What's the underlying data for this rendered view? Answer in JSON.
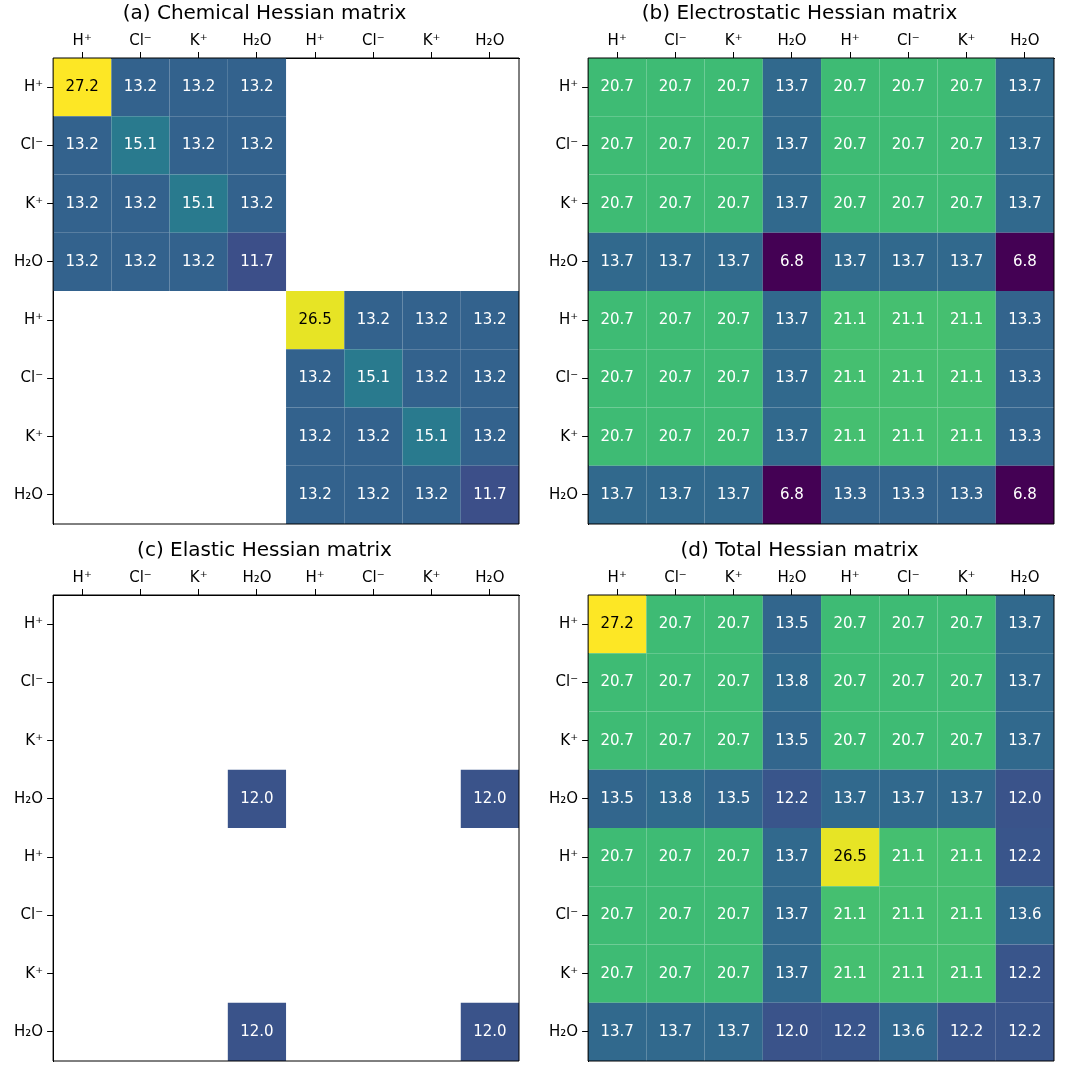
{
  "chart_data": [
    {
      "type": "heatmap",
      "title": "(a) Chemical Hessian matrix",
      "data_labels": true,
      "categories": [
        "H⁺",
        "Cl⁻",
        "K⁺",
        "H₂O",
        "H⁺",
        "Cl⁻",
        "K⁺",
        "H₂O"
      ],
      "y_categories": [
        "H⁺",
        "Cl⁻",
        "K⁺",
        "H₂O",
        "H⁺",
        "Cl⁻",
        "K⁺",
        "H₂O"
      ],
      "cells": [
        [
          27.2,
          13.2,
          13.2,
          13.2,
          null,
          null,
          null,
          null
        ],
        [
          13.2,
          15.1,
          13.2,
          13.2,
          null,
          null,
          null,
          null
        ],
        [
          13.2,
          13.2,
          15.1,
          13.2,
          null,
          null,
          null,
          null
        ],
        [
          13.2,
          13.2,
          13.2,
          11.7,
          null,
          null,
          null,
          null
        ],
        [
          null,
          null,
          null,
          null,
          26.5,
          13.2,
          13.2,
          13.2
        ],
        [
          null,
          null,
          null,
          null,
          13.2,
          15.1,
          13.2,
          13.2
        ],
        [
          null,
          null,
          null,
          null,
          13.2,
          13.2,
          15.1,
          13.2
        ],
        [
          null,
          null,
          null,
          null,
          13.2,
          13.2,
          13.2,
          11.7
        ]
      ]
    },
    {
      "type": "heatmap",
      "title": "(b) Electrostatic Hessian matrix",
      "data_labels": true,
      "categories": [
        "H⁺",
        "Cl⁻",
        "K⁺",
        "H₂O",
        "H⁺",
        "Cl⁻",
        "K⁺",
        "H₂O"
      ],
      "y_categories": [
        "H⁺",
        "Cl⁻",
        "K⁺",
        "H₂O",
        "H⁺",
        "Cl⁻",
        "K⁺",
        "H₂O"
      ],
      "cells": [
        [
          20.7,
          20.7,
          20.7,
          13.7,
          20.7,
          20.7,
          20.7,
          13.7
        ],
        [
          20.7,
          20.7,
          20.7,
          13.7,
          20.7,
          20.7,
          20.7,
          13.7
        ],
        [
          20.7,
          20.7,
          20.7,
          13.7,
          20.7,
          20.7,
          20.7,
          13.7
        ],
        [
          13.7,
          13.7,
          13.7,
          6.8,
          13.7,
          13.7,
          13.7,
          6.8
        ],
        [
          20.7,
          20.7,
          20.7,
          13.7,
          21.1,
          21.1,
          21.1,
          13.3
        ],
        [
          20.7,
          20.7,
          20.7,
          13.7,
          21.1,
          21.1,
          21.1,
          13.3
        ],
        [
          20.7,
          20.7,
          20.7,
          13.7,
          21.1,
          21.1,
          21.1,
          13.3
        ],
        [
          13.7,
          13.7,
          13.7,
          6.8,
          13.3,
          13.3,
          13.3,
          6.8
        ]
      ]
    },
    {
      "type": "heatmap",
      "title": "(c) Elastic Hessian matrix",
      "data_labels": true,
      "categories": [
        "H⁺",
        "Cl⁻",
        "K⁺",
        "H₂O",
        "H⁺",
        "Cl⁻",
        "K⁺",
        "H₂O"
      ],
      "y_categories": [
        "H⁺",
        "Cl⁻",
        "K⁺",
        "H₂O",
        "H⁺",
        "Cl⁻",
        "K⁺",
        "H₂O"
      ],
      "cells": [
        [
          null,
          null,
          null,
          null,
          null,
          null,
          null,
          null
        ],
        [
          null,
          null,
          null,
          null,
          null,
          null,
          null,
          null
        ],
        [
          null,
          null,
          null,
          null,
          null,
          null,
          null,
          null
        ],
        [
          null,
          null,
          null,
          12.0,
          null,
          null,
          null,
          12.0
        ],
        [
          null,
          null,
          null,
          null,
          null,
          null,
          null,
          null
        ],
        [
          null,
          null,
          null,
          null,
          null,
          null,
          null,
          null
        ],
        [
          null,
          null,
          null,
          null,
          null,
          null,
          null,
          null
        ],
        [
          null,
          null,
          null,
          12.0,
          null,
          null,
          null,
          12.0
        ]
      ],
      "cell_labels": [
        [
          null,
          null,
          null,
          null,
          null,
          null,
          null,
          null
        ],
        [
          null,
          null,
          null,
          null,
          null,
          null,
          null,
          null
        ],
        [
          null,
          null,
          null,
          null,
          null,
          null,
          null,
          null
        ],
        [
          null,
          null,
          null,
          "12.0",
          null,
          null,
          null,
          "12.0"
        ],
        [
          null,
          null,
          null,
          null,
          null,
          null,
          null,
          null
        ],
        [
          null,
          null,
          null,
          null,
          null,
          null,
          null,
          null
        ],
        [
          null,
          null,
          null,
          null,
          null,
          null,
          null,
          null
        ],
        [
          null,
          null,
          null,
          "12.0",
          null,
          null,
          null,
          "12.0"
        ]
      ]
    },
    {
      "type": "heatmap",
      "title": "(d) Total Hessian matrix",
      "data_labels": true,
      "categories": [
        "H⁺",
        "Cl⁻",
        "K⁺",
        "H₂O",
        "H⁺",
        "Cl⁻",
        "K⁺",
        "H₂O"
      ],
      "y_categories": [
        "H⁺",
        "Cl⁻",
        "K⁺",
        "H₂O",
        "H⁺",
        "Cl⁻",
        "K⁺",
        "H₂O"
      ],
      "cells": [
        [
          27.2,
          20.7,
          20.7,
          13.5,
          20.7,
          20.7,
          20.7,
          13.7
        ],
        [
          20.7,
          20.7,
          20.7,
          13.8,
          20.7,
          20.7,
          20.7,
          13.7
        ],
        [
          20.7,
          20.7,
          20.7,
          13.5,
          20.7,
          20.7,
          20.7,
          13.7
        ],
        [
          13.5,
          13.8,
          13.5,
          12.2,
          13.7,
          13.7,
          13.7,
          12.0
        ],
        [
          20.7,
          20.7,
          20.7,
          13.7,
          26.5,
          21.1,
          21.1,
          12.2
        ],
        [
          20.7,
          20.7,
          20.7,
          13.7,
          21.1,
          21.1,
          21.1,
          13.6
        ],
        [
          20.7,
          20.7,
          20.7,
          13.7,
          21.1,
          21.1,
          21.1,
          12.2
        ],
        [
          13.7,
          13.7,
          13.7,
          12.0,
          12.2,
          13.6,
          12.2,
          12.2
        ]
      ],
      "cell_labels": [
        [
          "27.2",
          "20.7",
          "20.7",
          "13.5",
          "20.7",
          "20.7",
          "20.7",
          "13.7"
        ],
        [
          "20.7",
          "20.7",
          "20.7",
          "13.8",
          "20.7",
          "20.7",
          "20.7",
          "13.7"
        ],
        [
          "20.7",
          "20.7",
          "20.7",
          "13.5",
          "20.7",
          "20.7",
          "20.7",
          "13.7"
        ],
        [
          "13.5",
          "13.8",
          "13.5",
          "12.2",
          "13.7",
          "13.7",
          "13.7",
          "12.0"
        ],
        [
          "20.7",
          "20.7",
          "20.7",
          "13.7",
          "26.5",
          "21.1",
          "21.1",
          "12.2"
        ],
        [
          "20.7",
          "20.7",
          "20.7",
          "13.7",
          "21.1",
          "21.1",
          "21.1",
          "13.6"
        ],
        [
          "20.7",
          "20.7",
          "20.7",
          "13.7",
          "21.1",
          "21.1",
          "21.1",
          "12.2"
        ],
        [
          "13.7",
          "13.7",
          "13.7",
          "12.0",
          "12.2",
          "13.6",
          "12.2",
          "12.2"
        ]
      ]
    }
  ]
}
